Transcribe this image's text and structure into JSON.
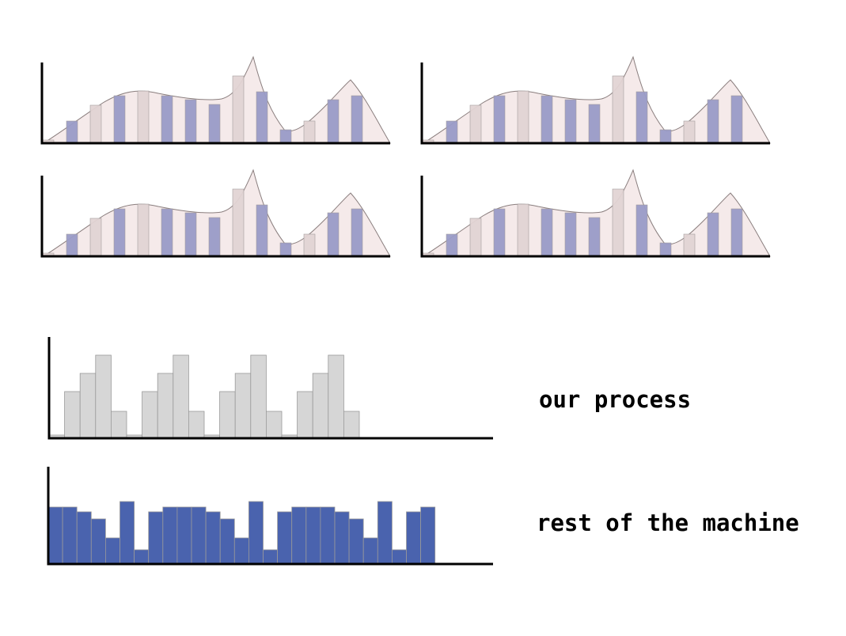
{
  "labels": {
    "process": "our process",
    "machine": "rest of the machine"
  },
  "distribution": {
    "values": [
      4,
      28,
      48,
      60,
      66,
      60,
      55,
      49,
      85,
      65,
      17,
      28,
      55,
      60
    ],
    "highlighted": [
      false,
      true,
      false,
      true,
      false,
      true,
      true,
      true,
      false,
      true,
      true,
      false,
      true,
      true
    ],
    "colors": {
      "highlight": "#9a9cc8",
      "plain": "#e2d4d4",
      "curve": "#f5eaea"
    }
  },
  "process": {
    "values": [
      4,
      59,
      82,
      105,
      34,
      4,
      59,
      82,
      105,
      34,
      4,
      59,
      82,
      105,
      34,
      4,
      59,
      82,
      105,
      34
    ],
    "color": "#d6d6d6"
  },
  "machine": {
    "values": [
      72,
      72,
      66,
      57,
      33,
      79,
      18,
      66,
      72,
      72,
      72,
      66,
      57,
      33,
      79,
      18,
      66,
      72,
      72,
      72,
      66,
      57,
      33,
      79,
      18,
      66,
      72
    ],
    "color": "#4a63ae"
  }
}
